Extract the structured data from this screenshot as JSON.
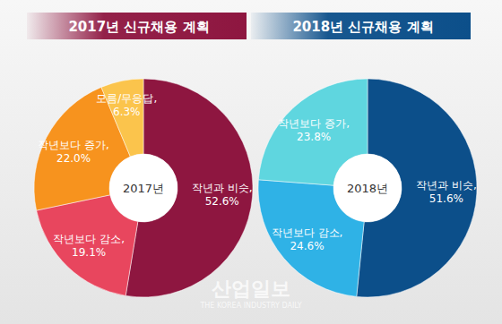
{
  "chart_data": [
    {
      "type": "donut",
      "title": "2017년 신규채용 계획",
      "annotations": [
        "2017년"
      ],
      "categories": [
        "작년과 비슷,",
        "작년보다 감소,",
        "작년보다 증가,",
        "모름/무응답,"
      ],
      "values": [
        52.6,
        19.1,
        22.0,
        6.3
      ],
      "value_labels": [
        "52.6%",
        "19.1%",
        "22.0%",
        "6.3%"
      ],
      "colors": [
        "#8e1640",
        "#e8465e",
        "#f7931e",
        "#fbc44c"
      ],
      "color": "#8e1640",
      "data_labels": true
    },
    {
      "type": "donut",
      "title": "2018년 신규채용 계획",
      "annotations": [
        "2018년"
      ],
      "categories": [
        "작년과 비슷,",
        "작년보다 감소,",
        "작년보다 증가,"
      ],
      "values": [
        51.6,
        24.6,
        23.8
      ],
      "value_labels": [
        "51.6%",
        "24.6%",
        "23.8%"
      ],
      "colors": [
        "#0c4f8a",
        "#2fb2e6",
        "#5fd6df"
      ],
      "color": "#0c4f8a",
      "data_labels": true
    }
  ],
  "watermark": {
    "title": "산업일보",
    "subtitle": "THE KOREA INDUSTRY DAILY"
  }
}
